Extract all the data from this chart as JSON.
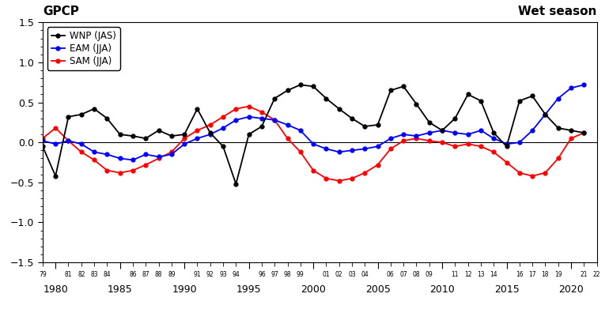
{
  "years": [
    1979,
    1980,
    1981,
    1982,
    1983,
    1984,
    1985,
    1986,
    1987,
    1988,
    1989,
    1990,
    1991,
    1992,
    1993,
    1994,
    1995,
    1996,
    1997,
    1998,
    1999,
    2000,
    2001,
    2002,
    2003,
    2004,
    2005,
    2006,
    2007,
    2008,
    2009,
    2010,
    2011,
    2012,
    2013,
    2014,
    2015,
    2016,
    2017,
    2018,
    2019,
    2020,
    2021
  ],
  "WNP": [
    -0.05,
    -0.42,
    0.32,
    0.35,
    0.42,
    0.3,
    0.1,
    0.08,
    0.05,
    0.15,
    0.08,
    0.1,
    0.42,
    0.12,
    -0.05,
    -0.52,
    0.1,
    0.2,
    0.55,
    0.65,
    0.72,
    0.7,
    0.55,
    0.42,
    0.3,
    0.2,
    0.22,
    0.65,
    0.7,
    0.48,
    0.25,
    0.15,
    0.3,
    0.6,
    0.52,
    0.12,
    -0.05,
    0.52,
    0.58,
    0.35,
    0.18,
    0.15,
    0.12
  ],
  "EAM": [
    0.02,
    -0.02,
    0.02,
    -0.02,
    -0.12,
    -0.15,
    -0.2,
    -0.22,
    -0.15,
    -0.18,
    -0.15,
    -0.02,
    0.05,
    0.1,
    0.18,
    0.28,
    0.32,
    0.3,
    0.28,
    0.22,
    0.15,
    -0.02,
    -0.08,
    -0.12,
    -0.1,
    -0.08,
    -0.05,
    0.05,
    0.1,
    0.08,
    0.12,
    0.15,
    0.12,
    0.1,
    0.15,
    0.05,
    -0.02,
    0.0,
    0.15,
    0.35,
    0.55,
    0.68,
    0.72
  ],
  "SAM": [
    0.05,
    0.18,
    0.02,
    -0.12,
    -0.22,
    -0.35,
    -0.38,
    -0.35,
    -0.28,
    -0.2,
    -0.12,
    0.05,
    0.15,
    0.22,
    0.32,
    0.42,
    0.45,
    0.38,
    0.28,
    0.05,
    -0.12,
    -0.35,
    -0.45,
    -0.48,
    -0.45,
    -0.38,
    -0.28,
    -0.08,
    0.02,
    0.05,
    0.02,
    0.0,
    -0.05,
    -0.02,
    -0.05,
    -0.12,
    -0.25,
    -0.38,
    -0.42,
    -0.38,
    -0.2,
    0.05,
    0.12
  ],
  "ylim": [
    -1.5,
    1.5
  ],
  "xlim": [
    1979,
    2022
  ],
  "yticks": [
    -1.5,
    -1.0,
    -0.5,
    0.0,
    0.5,
    1.0,
    1.5
  ],
  "minor_ytick_interval": 0.1,
  "label_top_left": "GPCP",
  "label_top_right": "Wet season",
  "legend_labels": [
    "WNP (JAS)",
    "EAM (JJA)",
    "SAM (JJA)"
  ],
  "colors": {
    "WNP": "#000000",
    "EAM": "#0000ff",
    "SAM": "#ff0000"
  },
  "linewidth": 1.3,
  "marker_size": 3.5,
  "major_xticks": [
    1980,
    1985,
    1990,
    1995,
    2000,
    2005,
    2010,
    2015,
    2020
  ],
  "background_color": "#ffffff",
  "small_label_years": [
    1979,
    1981,
    1982,
    1983,
    1984,
    1986,
    1987,
    1988,
    1989,
    1991,
    1992,
    1993,
    1994,
    1996,
    1997,
    1998,
    1999,
    2001,
    2002,
    2003,
    2004,
    2006,
    2007,
    2008,
    2009,
    2011,
    2012,
    2013,
    2014,
    2016,
    2017,
    2018,
    2019,
    2021,
    2022
  ]
}
